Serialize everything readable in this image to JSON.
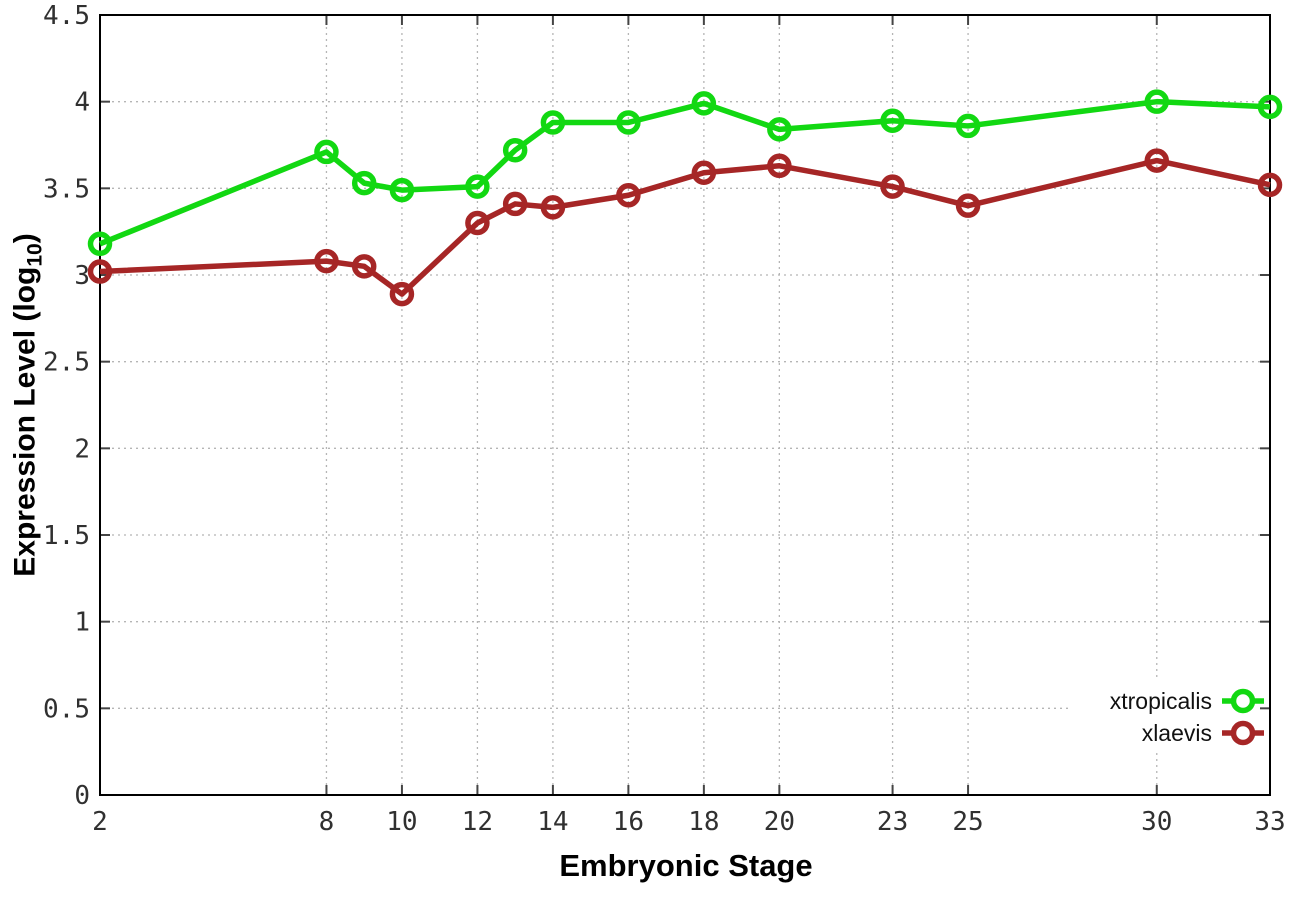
{
  "figure": {
    "background": "#ffffff"
  },
  "chart_data": {
    "type": "line",
    "title": "",
    "xlabel": "Embryonic Stage",
    "ylabel": "Expression Level (log10)",
    "ylabel_parts": {
      "prefix": "Expression Level (log",
      "sub": "10",
      "suffix": ")"
    },
    "x": [
      2,
      8,
      9,
      10,
      12,
      13,
      14,
      16,
      18,
      20,
      23,
      25,
      30,
      33
    ],
    "series": [
      {
        "name": "xtropicalis",
        "color": "#12d812",
        "values": [
          3.18,
          3.71,
          3.53,
          3.49,
          3.51,
          3.72,
          3.88,
          3.88,
          3.99,
          3.84,
          3.89,
          3.86,
          4.0,
          3.97
        ]
      },
      {
        "name": "xlaevis",
        "color": "#a62626",
        "values": [
          3.02,
          3.08,
          3.05,
          2.89,
          3.3,
          3.41,
          3.39,
          3.46,
          3.59,
          3.63,
          3.51,
          3.4,
          3.66,
          3.52
        ]
      }
    ],
    "xticks": [
      "2",
      "8",
      "10",
      "12",
      "14",
      "16",
      "18",
      "20",
      "23",
      "25",
      "30",
      "33"
    ],
    "yticks": [
      "0",
      "0.5",
      "1",
      "1.5",
      "2",
      "2.5",
      "3",
      "3.5",
      "4",
      "4.5"
    ],
    "xlim": [
      2,
      33
    ],
    "ylim": [
      0,
      4.5
    ],
    "grid": true,
    "legend_position": "inside-bottom-right",
    "legend_entries": [
      "xtropicalis",
      "xlaevis"
    ],
    "colors": {
      "grid": "#b5b5b5",
      "border": "#000000",
      "tick_text": "#303030",
      "tick_mark": "#444444",
      "legend_text": "#111111"
    }
  }
}
